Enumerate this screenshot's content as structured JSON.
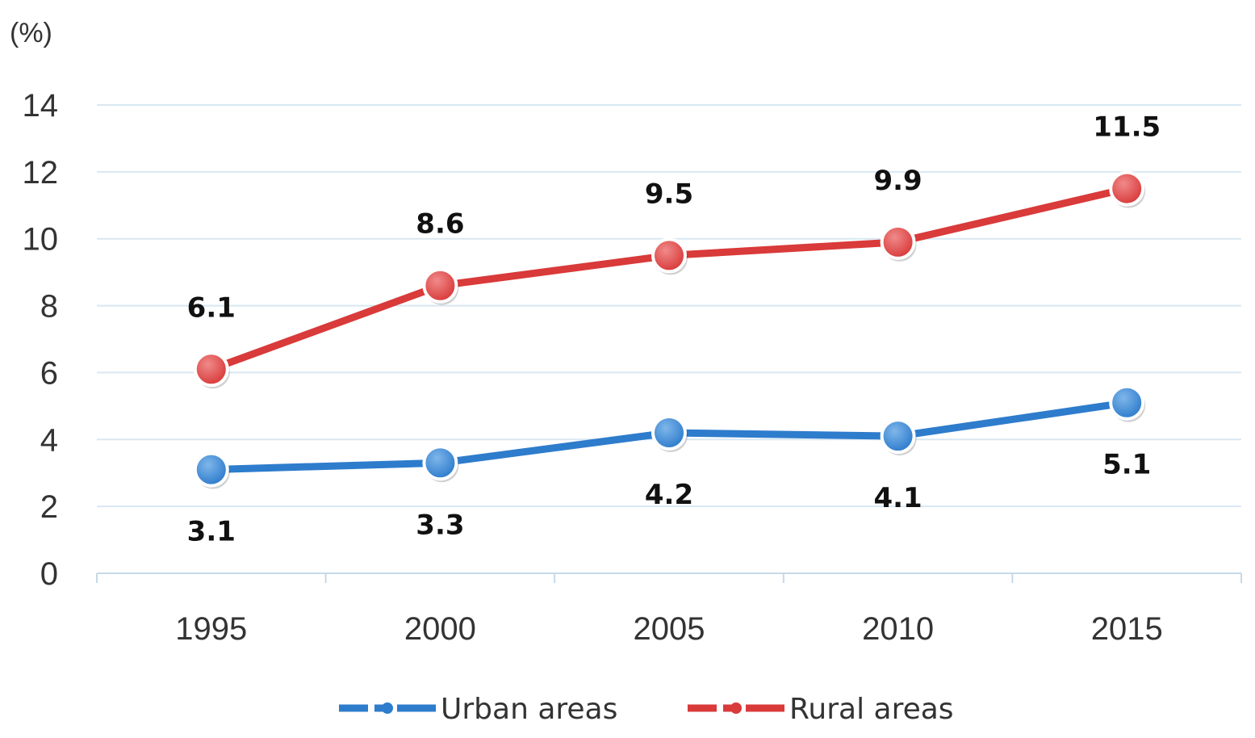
{
  "chart_data": {
    "type": "line",
    "title": "",
    "unit_label": "(%)",
    "xlabel": "",
    "ylabel": "(%)",
    "categories": [
      "1995",
      "2000",
      "2005",
      "2010",
      "2015"
    ],
    "ylim": [
      0,
      14
    ],
    "yticks": [
      0,
      2,
      4,
      6,
      8,
      10,
      12,
      14
    ],
    "grid": true,
    "legend_position": "bottom",
    "series": [
      {
        "name": "Urban areas",
        "color": "#2e7ccc",
        "values": [
          3.1,
          3.3,
          4.2,
          4.1,
          5.1
        ],
        "labels": [
          "3.1",
          "3.3",
          "4.2",
          "4.1",
          "5.1"
        ],
        "label_position": "below"
      },
      {
        "name": "Rural areas",
        "color": "#d93a3a",
        "values": [
          6.1,
          8.6,
          9.5,
          9.9,
          11.5
        ],
        "labels": [
          "6.1",
          "8.6",
          "9.5",
          "9.9",
          "11.5"
        ],
        "label_position": "above"
      }
    ]
  }
}
